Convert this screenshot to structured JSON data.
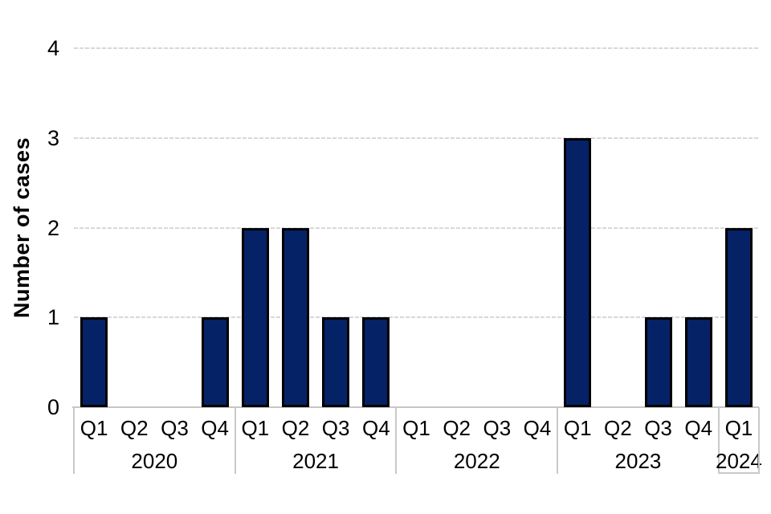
{
  "chart_data": {
    "type": "bar",
    "ylabel": "Number of cases",
    "xlabel": "",
    "ylim": [
      0,
      4
    ],
    "yticks": [
      0,
      1,
      2,
      3,
      4
    ],
    "grid": true,
    "legend": false,
    "bar_color": "#062267",
    "bar_border_color": "#000000",
    "categories": [
      "2020 Q1",
      "2020 Q2",
      "2020 Q3",
      "2020 Q4",
      "2021 Q1",
      "2021 Q2",
      "2021 Q3",
      "2021 Q4",
      "2022 Q1",
      "2022 Q2",
      "2022 Q3",
      "2022 Q4",
      "2023 Q1",
      "2023 Q2",
      "2023 Q3",
      "2023 Q4",
      "2024 Q1"
    ],
    "values": [
      1,
      0,
      0,
      1,
      2,
      2,
      1,
      1,
      0,
      0,
      0,
      0,
      3,
      0,
      1,
      1,
      2
    ],
    "groups": [
      {
        "year": "2020",
        "quarters": [
          "Q1",
          "Q2",
          "Q3",
          "Q4"
        ],
        "values": [
          1,
          0,
          0,
          1
        ]
      },
      {
        "year": "2021",
        "quarters": [
          "Q1",
          "Q2",
          "Q3",
          "Q4"
        ],
        "values": [
          2,
          2,
          1,
          1
        ]
      },
      {
        "year": "2022",
        "quarters": [
          "Q1",
          "Q2",
          "Q3",
          "Q4"
        ],
        "values": [
          0,
          0,
          0,
          0
        ]
      },
      {
        "year": "2023",
        "quarters": [
          "Q1",
          "Q2",
          "Q3",
          "Q4"
        ],
        "values": [
          3,
          0,
          1,
          1
        ]
      },
      {
        "year": "2024",
        "quarters": [
          "Q1"
        ],
        "values": [
          2
        ]
      }
    ]
  }
}
